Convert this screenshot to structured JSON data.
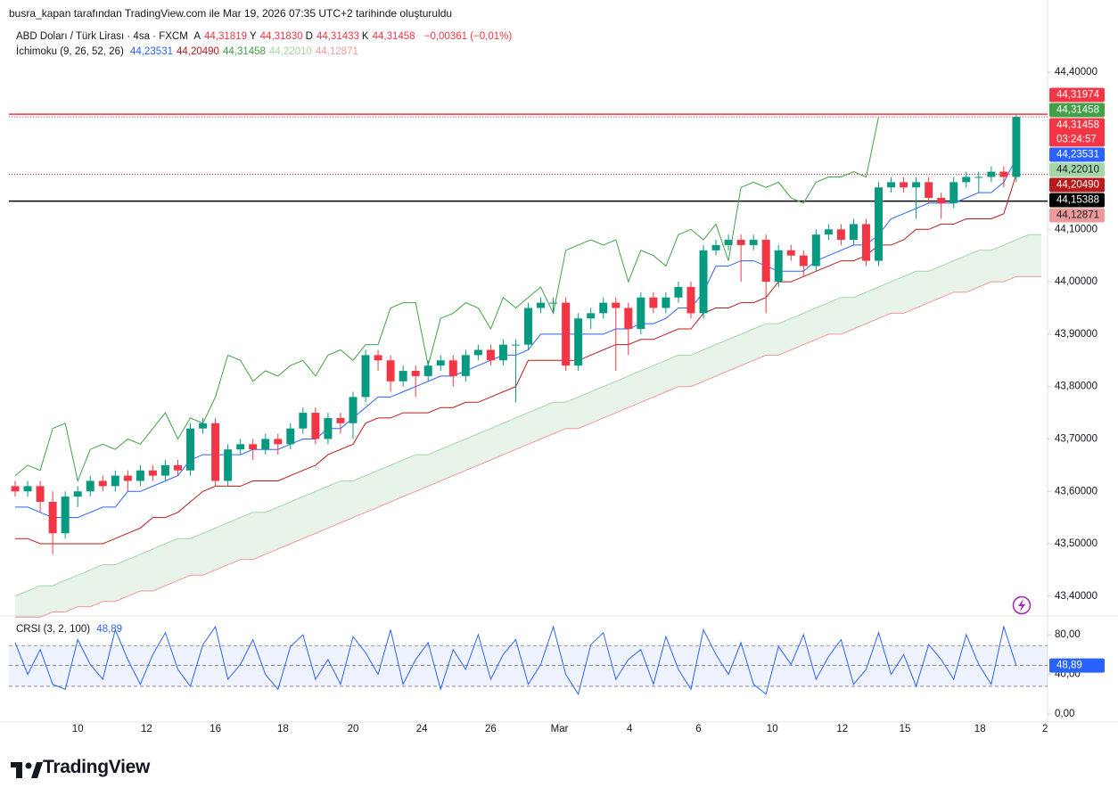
{
  "header": {
    "text": "busra_kapan tarafından TradingView.com ile Mar 19, 2026 07:35 UTC+2 tarihinde oluşturuldu"
  },
  "legend": {
    "symbol": "ABD Doları / Türk Lirası · 4sa · FXCM",
    "ohlc": [
      {
        "label": "A",
        "value": "44,31819"
      },
      {
        "label": "Y",
        "value": "44,31830"
      },
      {
        "label": "D",
        "value": "44,31433"
      },
      {
        "label": "K",
        "value": "44,31458"
      }
    ],
    "change": "−0,00361 (−0,01%)",
    "indicator": "İchimoku (9, 26, 52, 26)",
    "indicator_values": [
      {
        "text": "44,23531",
        "color": "#2962ff"
      },
      {
        "text": "44,20490",
        "color": "#b71c1c"
      },
      {
        "text": "44,31458",
        "color": "#43a047"
      },
      {
        "text": "44,22010",
        "color": "#a5d6a7"
      },
      {
        "text": "44,12871",
        "color": "#ef9a9a"
      }
    ]
  },
  "chart_data": [
    {
      "type": "candlestick",
      "up_color": "#089981",
      "down_color": "#f23645",
      "xlim": [
        -0.5,
        82.5
      ],
      "ylim": [
        43.364,
        44.49
      ],
      "grid": false,
      "xticks": [
        {
          "value": 5.0,
          "label": "10"
        },
        {
          "value": 10.5,
          "label": "12"
        },
        {
          "value": 16.0,
          "label": "16"
        },
        {
          "value": 21.4,
          "label": "18"
        },
        {
          "value": 27.0,
          "label": "20"
        },
        {
          "value": 32.5,
          "label": "24"
        },
        {
          "value": 38.0,
          "label": "26"
        },
        {
          "value": 43.5,
          "label": "Mar"
        },
        {
          "value": 49.1,
          "label": "4"
        },
        {
          "value": 54.6,
          "label": "6"
        },
        {
          "value": 60.5,
          "label": "10"
        },
        {
          "value": 66.1,
          "label": "12"
        },
        {
          "value": 71.1,
          "label": "15"
        },
        {
          "value": 77.1,
          "label": "18"
        },
        {
          "value": 82.3,
          "label": "2"
        }
      ],
      "yticks": [
        {
          "value": 44.4,
          "label": "44,40000"
        },
        {
          "value": 44.1,
          "label": "44,10000"
        },
        {
          "value": 44.0,
          "label": "44,00000"
        },
        {
          "value": 43.9,
          "label": "43,90000"
        },
        {
          "value": 43.8,
          "label": "43,80000"
        },
        {
          "value": 43.7,
          "label": "43,70000"
        },
        {
          "value": 43.6,
          "label": "43,60000"
        },
        {
          "value": 43.5,
          "label": "43,50000"
        },
        {
          "value": 43.4,
          "label": "43,40000"
        }
      ],
      "open": [
        43.61,
        43.6,
        43.61,
        43.58,
        43.52,
        43.59,
        43.6,
        43.62,
        43.61,
        43.63,
        43.62,
        43.64,
        43.63,
        43.65,
        43.64,
        43.72,
        43.73,
        43.62,
        43.68,
        43.69,
        43.68,
        43.7,
        43.69,
        43.72,
        43.75,
        43.7,
        43.74,
        43.73,
        43.78,
        43.86,
        43.85,
        43.81,
        43.83,
        43.82,
        43.84,
        43.85,
        43.82,
        43.86,
        43.87,
        43.85,
        43.88,
        43.88,
        43.95,
        43.96,
        43.96,
        43.84,
        43.93,
        43.94,
        43.96,
        43.95,
        43.91,
        43.97,
        43.95,
        43.97,
        43.99,
        43.94,
        44.06,
        44.07,
        44.08,
        44.07,
        44.08,
        44.0,
        44.06,
        44.05,
        44.03,
        44.09,
        44.1,
        44.08,
        44.11,
        44.04,
        44.18,
        44.19,
        44.18,
        44.19,
        44.16,
        44.15,
        44.19,
        44.2,
        44.2,
        44.21,
        44.2
      ],
      "high": [
        43.62,
        43.62,
        43.62,
        43.6,
        43.6,
        43.61,
        43.63,
        43.63,
        43.64,
        43.64,
        43.65,
        43.65,
        43.66,
        43.66,
        43.73,
        43.74,
        43.74,
        43.69,
        43.7,
        43.7,
        43.71,
        43.71,
        43.73,
        43.76,
        43.76,
        43.75,
        43.75,
        43.79,
        43.87,
        43.87,
        43.86,
        43.84,
        43.84,
        43.85,
        43.86,
        43.86,
        43.87,
        43.88,
        43.88,
        43.89,
        43.89,
        43.96,
        43.97,
        43.97,
        43.97,
        43.94,
        43.95,
        43.97,
        43.97,
        43.96,
        43.98,
        43.98,
        43.98,
        44.0,
        44.0,
        44.07,
        44.08,
        44.09,
        44.09,
        44.09,
        44.09,
        44.07,
        44.07,
        44.06,
        44.1,
        44.11,
        44.11,
        44.12,
        44.12,
        44.19,
        44.2,
        44.2,
        44.2,
        44.2,
        44.17,
        44.2,
        44.21,
        44.21,
        44.22,
        44.22,
        44.3183
      ],
      "low": [
        43.59,
        43.59,
        43.56,
        43.48,
        43.51,
        43.57,
        43.59,
        43.6,
        43.6,
        43.6,
        43.61,
        43.62,
        43.62,
        43.63,
        43.63,
        43.71,
        43.61,
        43.61,
        43.67,
        43.66,
        43.67,
        43.67,
        43.68,
        43.71,
        43.69,
        43.69,
        43.71,
        43.7,
        43.77,
        43.83,
        43.79,
        43.8,
        43.78,
        43.81,
        43.83,
        43.8,
        43.81,
        43.85,
        43.84,
        43.84,
        43.77,
        43.87,
        43.94,
        43.94,
        43.83,
        43.83,
        43.91,
        43.93,
        43.83,
        43.86,
        43.9,
        43.94,
        43.94,
        43.96,
        43.93,
        43.93,
        44.05,
        44.06,
        44.0,
        44.06,
        43.94,
        43.99,
        44.04,
        44.01,
        44.02,
        44.08,
        44.07,
        44.07,
        44.03,
        44.03,
        44.17,
        44.17,
        44.12,
        44.15,
        44.12,
        44.14,
        44.18,
        44.17,
        44.19,
        44.18,
        44.19
      ],
      "close": [
        43.6,
        43.61,
        43.58,
        43.52,
        43.59,
        43.6,
        43.62,
        43.61,
        43.63,
        43.62,
        43.64,
        43.63,
        43.65,
        43.64,
        43.72,
        43.73,
        43.62,
        43.68,
        43.69,
        43.68,
        43.7,
        43.69,
        43.72,
        43.75,
        43.7,
        43.74,
        43.73,
        43.78,
        43.86,
        43.85,
        43.81,
        43.83,
        43.82,
        43.84,
        43.85,
        43.82,
        43.86,
        43.87,
        43.85,
        43.88,
        43.88,
        43.95,
        43.96,
        43.96,
        43.84,
        43.93,
        43.94,
        43.96,
        43.95,
        43.91,
        43.97,
        43.95,
        43.97,
        43.99,
        43.94,
        44.06,
        44.07,
        44.08,
        44.07,
        44.08,
        44.0,
        44.06,
        44.05,
        44.03,
        44.09,
        44.1,
        44.08,
        44.11,
        44.04,
        44.18,
        44.19,
        44.18,
        44.19,
        44.16,
        44.15,
        44.19,
        44.2,
        44.2,
        44.21,
        44.2,
        44.31458
      ],
      "cloud": {
        "fill": "rgba(67,160,71,0.12)",
        "upper_color": "#a5d6a7",
        "lower_color": "#ef9a9a",
        "upper": [
          43.4,
          43.41,
          43.42,
          43.42,
          43.43,
          43.44,
          43.45,
          43.46,
          43.46,
          43.47,
          43.48,
          43.49,
          43.5,
          43.51,
          43.51,
          43.52,
          43.53,
          43.54,
          43.55,
          43.56,
          43.56,
          43.57,
          43.58,
          43.59,
          43.6,
          43.61,
          43.62,
          43.62,
          43.63,
          43.64,
          43.65,
          43.66,
          43.67,
          43.67,
          43.68,
          43.69,
          43.7,
          43.71,
          43.72,
          43.73,
          43.74,
          43.75,
          43.76,
          43.77,
          43.77,
          43.78,
          43.79,
          43.8,
          43.81,
          43.82,
          43.83,
          43.84,
          43.85,
          43.86,
          43.86,
          43.87,
          43.88,
          43.89,
          43.9,
          43.91,
          43.92,
          43.92,
          43.93,
          43.94,
          43.95,
          43.96,
          43.97,
          43.97,
          43.98,
          43.99,
          44.0,
          44.01,
          44.02,
          44.02,
          44.03,
          44.04,
          44.05,
          44.06,
          44.06,
          44.07,
          44.08,
          44.09,
          44.09
        ],
        "lower": [
          43.36,
          43.36,
          43.36,
          43.37,
          43.37,
          43.38,
          43.38,
          43.39,
          43.39,
          43.4,
          43.41,
          43.41,
          43.42,
          43.43,
          43.44,
          43.44,
          43.45,
          43.46,
          43.47,
          43.47,
          43.48,
          43.49,
          43.5,
          43.51,
          43.52,
          43.53,
          43.54,
          43.55,
          43.56,
          43.57,
          43.58,
          43.59,
          43.6,
          43.61,
          43.62,
          43.63,
          43.64,
          43.65,
          43.66,
          43.67,
          43.68,
          43.69,
          43.7,
          43.71,
          43.72,
          43.72,
          43.73,
          43.74,
          43.75,
          43.76,
          43.77,
          43.78,
          43.79,
          43.8,
          43.8,
          43.81,
          43.82,
          43.83,
          43.84,
          43.85,
          43.86,
          43.86,
          43.87,
          43.88,
          43.89,
          43.9,
          43.9,
          43.91,
          43.92,
          43.93,
          43.94,
          43.94,
          43.95,
          43.96,
          43.97,
          43.98,
          43.98,
          43.99,
          44.0,
          44.0,
          44.01,
          44.01,
          44.01
        ]
      },
      "series": [
        {
          "color": "#43a047",
          "values": [
            43.63,
            43.65,
            43.64,
            43.72,
            43.73,
            43.62,
            43.68,
            43.69,
            43.68,
            43.7,
            43.69,
            43.72,
            43.75,
            43.7,
            43.74,
            43.73,
            43.78,
            43.86,
            43.85,
            43.81,
            43.83,
            43.82,
            43.84,
            43.85,
            43.82,
            43.86,
            43.87,
            43.85,
            43.88,
            43.88,
            43.95,
            43.96,
            43.96,
            43.84,
            43.93,
            43.94,
            43.96,
            43.95,
            43.91,
            43.97,
            43.95,
            43.97,
            43.99,
            43.94,
            44.06,
            44.07,
            44.08,
            44.07,
            44.08,
            44.0,
            44.06,
            44.05,
            44.03,
            44.09,
            44.1,
            44.08,
            44.11,
            44.04,
            44.18,
            44.19,
            44.18,
            44.19,
            44.16,
            44.15,
            44.19,
            44.2,
            44.2,
            44.21,
            44.2,
            44.31458,
            null,
            null,
            null,
            null,
            null,
            null,
            null,
            null,
            null,
            null,
            null
          ]
        },
        {
          "color": "#b71c1c",
          "values": [
            43.51,
            43.51,
            43.5,
            43.5,
            43.5,
            43.5,
            43.5,
            43.5,
            43.51,
            43.52,
            43.53,
            43.55,
            43.55,
            43.56,
            43.58,
            43.6,
            43.61,
            43.61,
            43.61,
            43.62,
            43.62,
            43.62,
            43.63,
            43.64,
            43.65,
            43.67,
            43.68,
            43.69,
            43.73,
            43.74,
            43.74,
            43.75,
            43.75,
            43.75,
            43.76,
            43.76,
            43.77,
            43.77,
            43.78,
            43.79,
            43.8,
            43.85,
            43.85,
            43.85,
            43.85,
            43.85,
            43.86,
            43.87,
            43.88,
            43.88,
            43.89,
            43.89,
            43.9,
            43.91,
            43.91,
            43.94,
            43.95,
            43.95,
            43.96,
            43.96,
            43.97,
            44.0,
            44.0,
            44.01,
            44.02,
            44.03,
            44.04,
            44.04,
            44.05,
            44.07,
            44.07,
            44.08,
            44.1,
            44.1,
            44.11,
            44.11,
            44.12,
            44.12,
            44.12,
            44.13,
            44.2049
          ]
        },
        {
          "color": "#2962ff",
          "values": [
            43.57,
            43.57,
            43.56,
            43.55,
            43.55,
            43.55,
            43.56,
            43.57,
            43.57,
            43.6,
            43.6,
            43.61,
            43.62,
            43.63,
            43.66,
            43.67,
            43.67,
            43.67,
            43.67,
            43.68,
            43.68,
            43.68,
            43.69,
            43.7,
            43.7,
            43.72,
            43.72,
            43.74,
            43.76,
            43.78,
            43.78,
            43.79,
            43.8,
            43.81,
            43.82,
            43.82,
            43.83,
            43.84,
            43.85,
            43.86,
            43.86,
            43.87,
            43.9,
            43.9,
            43.9,
            43.9,
            43.9,
            43.9,
            43.91,
            43.91,
            43.92,
            43.92,
            43.93,
            43.95,
            43.95,
            43.98,
            44.03,
            44.03,
            44.04,
            44.04,
            44.03,
            44.02,
            44.02,
            44.02,
            44.04,
            44.05,
            44.06,
            44.07,
            44.07,
            44.09,
            44.12,
            44.13,
            44.14,
            44.15,
            44.15,
            44.15,
            44.16,
            44.17,
            44.17,
            44.19,
            44.23531
          ]
        }
      ],
      "price_lines": [
        {
          "value": 44.31974,
          "label": "44,31974",
          "color": "#f23645",
          "text_color": "#ffffff",
          "line": "solid"
        },
        {
          "value": 44.31458,
          "label": "44,31458",
          "color": "#43a047",
          "text_color": "#ffffff",
          "line": "none"
        },
        {
          "value": 44.31458,
          "label": "44,31458",
          "color": "#f23645",
          "text_color": "#ffffff",
          "line": "dotted",
          "countdown": "03:24:57"
        },
        {
          "value": 44.23531,
          "label": "44,23531",
          "color": "#2962ff",
          "text_color": "#ffffff",
          "line": "none"
        },
        {
          "value": 44.2201,
          "label": "44,22010",
          "color": "#a5d6a7",
          "text_color": "#131722",
          "line": "none"
        },
        {
          "value": 44.2049,
          "label": "44,20490",
          "color": "#b71c1c",
          "text_color": "#ffffff",
          "line": "dotted"
        },
        {
          "value": 44.15388,
          "label": "44,15388",
          "color": "#000000",
          "text_color": "#ffffff",
          "line": "solid"
        },
        {
          "value": 44.12871,
          "label": "44,12871",
          "color": "#ef9a9a",
          "text_color": "#131722",
          "line": "none"
        }
      ]
    },
    {
      "type": "line",
      "title": "CRSI (3, 2, 100)",
      "color": "#2962ff",
      "last_label": "48,89",
      "ylim": [
        -8,
        98
      ],
      "yticks": [
        {
          "value": 80,
          "label": "80,00"
        },
        {
          "value": 40,
          "label": "40,00"
        },
        {
          "value": 0,
          "label": "0,00"
        }
      ],
      "bands": {
        "upper": 69,
        "middle": 49,
        "lower": 28,
        "fill": "rgba(41,98,255,0.08)"
      },
      "values": [
        72,
        40,
        65,
        30,
        25,
        75,
        50,
        35,
        85,
        55,
        30,
        60,
        82,
        45,
        28,
        70,
        88,
        35,
        50,
        75,
        40,
        25,
        68,
        80,
        35,
        55,
        30,
        78,
        62,
        40,
        85,
        30,
        55,
        72,
        25,
        65,
        45,
        80,
        35,
        60,
        75,
        30,
        50,
        88,
        40,
        20,
        70,
        82,
        35,
        55,
        65,
        30,
        78,
        45,
        25,
        85,
        60,
        40,
        72,
        30,
        20,
        68,
        50,
        80,
        35,
        58,
        75,
        30,
        45,
        82,
        40,
        60,
        28,
        70,
        55,
        35,
        80,
        50,
        30,
        88,
        48.89
      ]
    }
  ],
  "footer": {
    "brand": "TradingView"
  }
}
